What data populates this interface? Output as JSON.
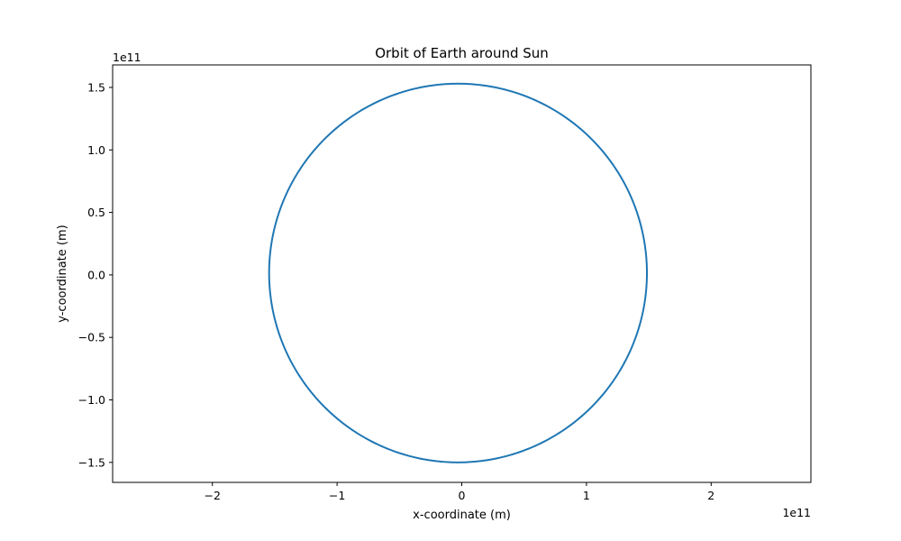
{
  "chart_data": {
    "type": "line",
    "title": "Orbit of Earth around Sun",
    "xlabel": "x-coordinate (m)",
    "ylabel": "y-coordinate (m)",
    "x_offset_label": "1e11",
    "y_offset_label": "1e11",
    "xlim": [
      -280000000000.0,
      280000000000.0
    ],
    "ylim": [
      -166000000000.0,
      168000000000.0
    ],
    "x_ticks": [
      -200000000000.0,
      -100000000000.0,
      0,
      100000000000.0,
      200000000000.0
    ],
    "x_tick_labels": [
      "−2",
      "−1",
      "0",
      "1",
      "2"
    ],
    "y_ticks": [
      -150000000000.0,
      -100000000000.0,
      -50000000000.0,
      0,
      50000000000.0,
      100000000000.0,
      150000000000.0
    ],
    "y_tick_labels": [
      "−1.5",
      "−1.0",
      "−0.5",
      "0.0",
      "0.5",
      "1.0",
      "1.5"
    ],
    "grid": false,
    "legend": "none",
    "series": [
      {
        "color": "#1f77b4",
        "orbit": {
          "center_x": -3000000000.0,
          "center_y": 1500000000.0,
          "semi_axis_x": 151500000000.0,
          "semi_axis_y": 151500000000.0
        }
      }
    ]
  }
}
